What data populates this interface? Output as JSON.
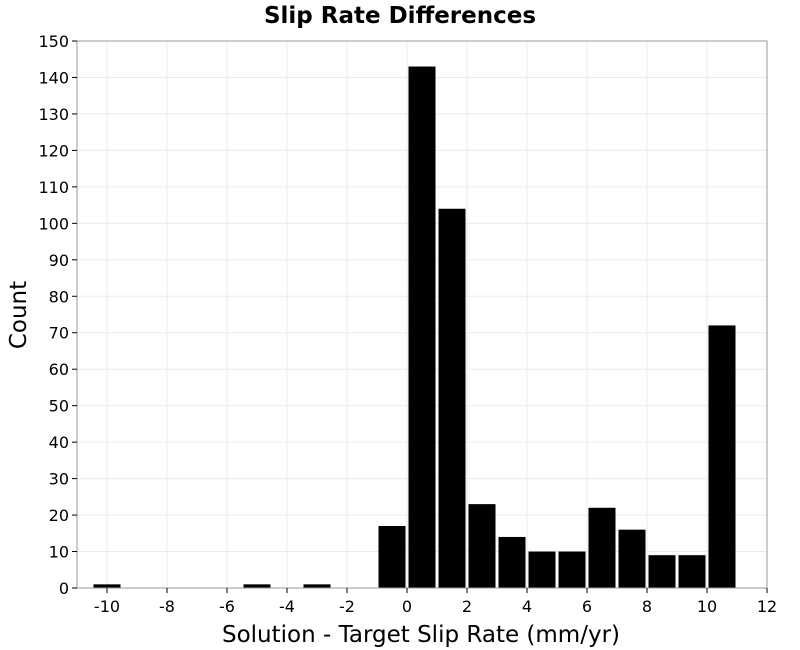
{
  "chart_data": {
    "type": "bar",
    "title": "Slip Rate Differences",
    "xlabel": "Solution - Target Slip Rate (mm/yr)",
    "ylabel": "Count",
    "xlim": [
      -11,
      12
    ],
    "ylim": [
      0,
      150
    ],
    "x_ticks": [
      -10,
      -8,
      -6,
      -4,
      -2,
      0,
      2,
      4,
      6,
      8,
      10,
      12
    ],
    "y_ticks": [
      0,
      10,
      20,
      30,
      40,
      50,
      60,
      70,
      80,
      90,
      100,
      110,
      120,
      130,
      140,
      150
    ],
    "bin_width": 1,
    "bins": [
      {
        "x": -10,
        "count": 1
      },
      {
        "x": -5,
        "count": 1
      },
      {
        "x": -3,
        "count": 1
      },
      {
        "x": -0.5,
        "count": 17
      },
      {
        "x": 0.5,
        "count": 143
      },
      {
        "x": 1.5,
        "count": 104
      },
      {
        "x": 2.5,
        "count": 23
      },
      {
        "x": 3.5,
        "count": 14
      },
      {
        "x": 4.5,
        "count": 10
      },
      {
        "x": 5.5,
        "count": 10
      },
      {
        "x": 6.5,
        "count": 22
      },
      {
        "x": 7.5,
        "count": 16
      },
      {
        "x": 8.5,
        "count": 9
      },
      {
        "x": 9.5,
        "count": 9
      },
      {
        "x": 10.5,
        "count": 72
      }
    ],
    "bar_color": "#000000",
    "grid": true
  }
}
